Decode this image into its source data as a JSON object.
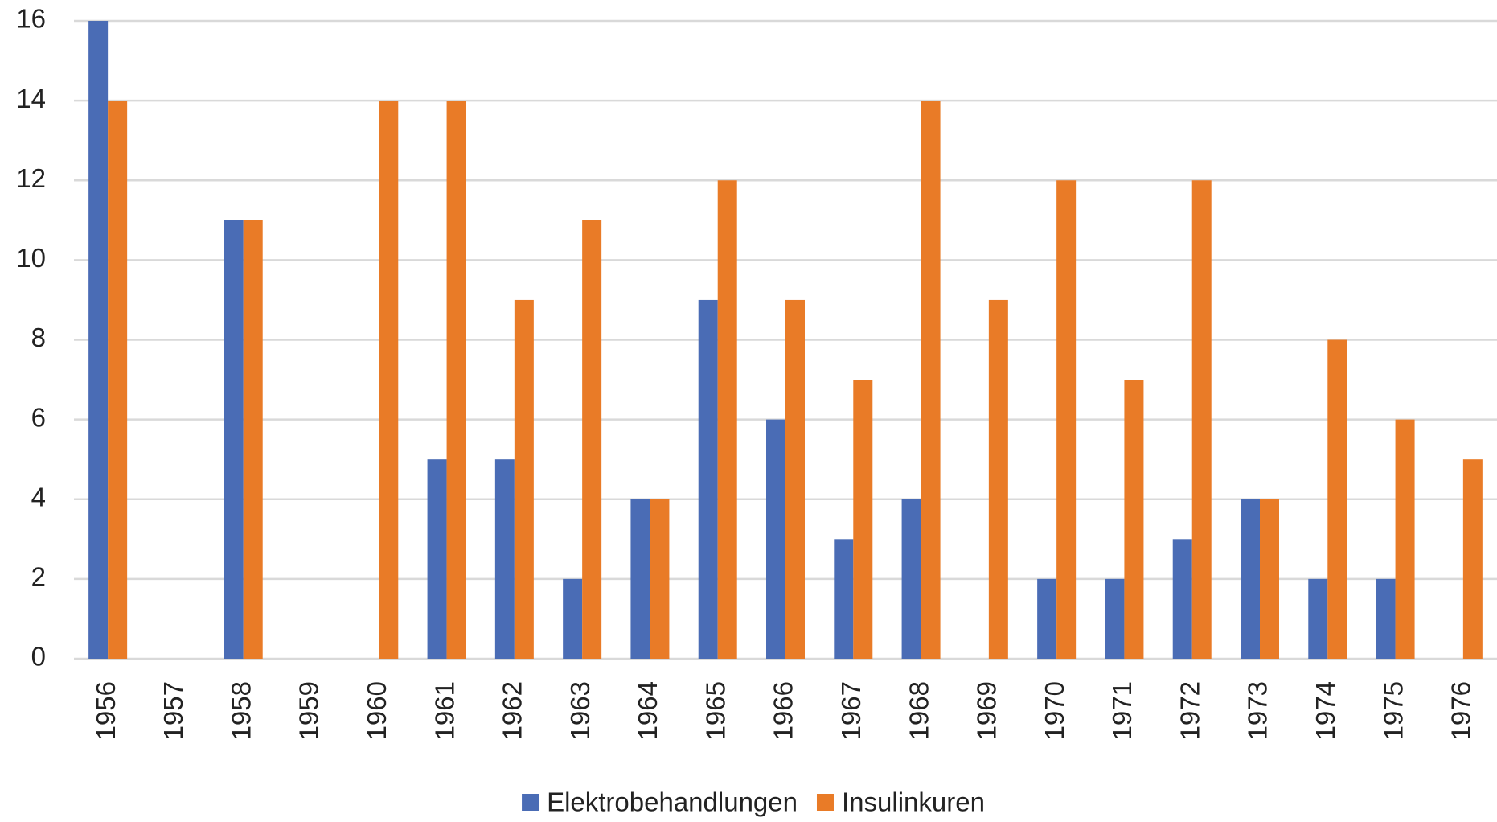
{
  "chart_data": {
    "type": "bar",
    "categories": [
      "1956",
      "1957",
      "1958",
      "1959",
      "1960",
      "1961",
      "1962",
      "1963",
      "1964",
      "1965",
      "1966",
      "1967",
      "1968",
      "1969",
      "1970",
      "1971",
      "1972",
      "1973",
      "1974",
      "1975",
      "1976"
    ],
    "series": [
      {
        "name": "Elektrobehandlungen",
        "color": "#4a6cb5",
        "values": [
          16,
          0,
          11,
          0,
          0,
          5,
          5,
          2,
          4,
          9,
          6,
          3,
          4,
          0,
          2,
          2,
          3,
          4,
          2,
          2,
          0
        ]
      },
      {
        "name": "Insulinkuren",
        "color": "#e97b27",
        "values": [
          14,
          0,
          11,
          0,
          14,
          14,
          9,
          11,
          4,
          12,
          9,
          7,
          14,
          9,
          12,
          7,
          12,
          4,
          8,
          6,
          5
        ]
      }
    ],
    "ylim": [
      0,
      16
    ],
    "yticks": [
      0,
      2,
      4,
      6,
      8,
      10,
      12,
      14,
      16
    ],
    "grid": true,
    "legend": "bottom"
  }
}
